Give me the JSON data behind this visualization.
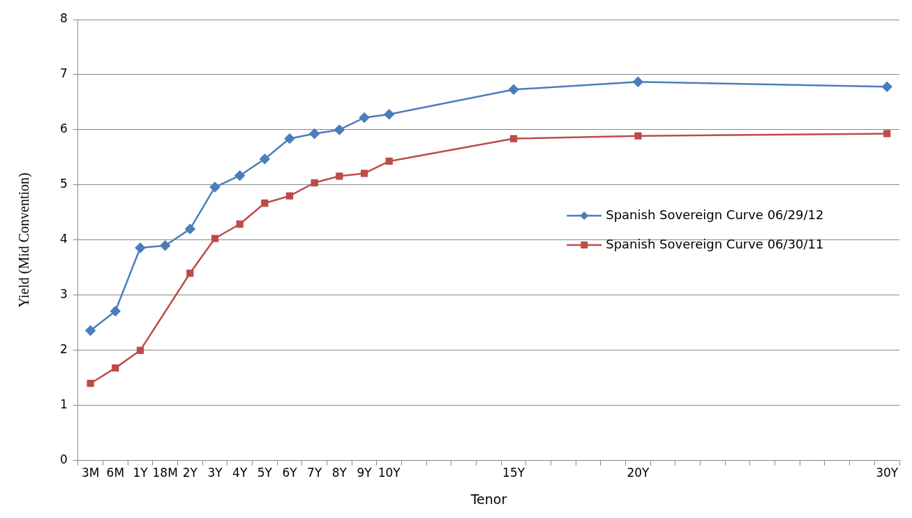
{
  "chart_data": {
    "type": "line",
    "xlabel": "Tenor",
    "ylabel": "Yield (Mid Convention)",
    "categories": [
      "3M",
      "6M",
      "1Y",
      "18M",
      "2Y",
      "3Y",
      "4Y",
      "5Y",
      "6Y",
      "7Y",
      "8Y",
      "9Y",
      "10Y",
      null,
      null,
      null,
      null,
      "15Y",
      null,
      null,
      null,
      null,
      "20Y",
      null,
      null,
      null,
      null,
      null,
      null,
      null,
      null,
      null,
      "30Y"
    ],
    "series": [
      {
        "name": "Spanish Sovereign Curve 06/29/12",
        "color": "#4a7ebb",
        "marker": "diamond",
        "values": [
          2.36,
          2.71,
          3.86,
          3.9,
          4.2,
          4.96,
          5.17,
          5.47,
          5.84,
          5.93,
          6.0,
          6.22,
          6.28,
          null,
          null,
          null,
          null,
          6.73,
          null,
          null,
          null,
          null,
          6.87,
          null,
          null,
          null,
          null,
          null,
          null,
          null,
          null,
          null,
          6.78
        ]
      },
      {
        "name": "Spanish Sovereign Curve 06/30/11",
        "color": "#be4b48",
        "marker": "square",
        "values": [
          1.4,
          1.68,
          2.0,
          null,
          3.4,
          4.03,
          4.29,
          4.67,
          4.8,
          5.04,
          5.16,
          5.21,
          5.43,
          null,
          null,
          null,
          null,
          5.84,
          null,
          null,
          null,
          null,
          5.89,
          null,
          null,
          null,
          null,
          null,
          null,
          null,
          null,
          null,
          5.93
        ]
      }
    ],
    "ylim": [
      0,
      8
    ],
    "yticks": [
      0,
      1,
      2,
      3,
      4,
      5,
      6,
      7,
      8
    ],
    "grid": "y",
    "legend": "right",
    "line_style": "solid"
  }
}
